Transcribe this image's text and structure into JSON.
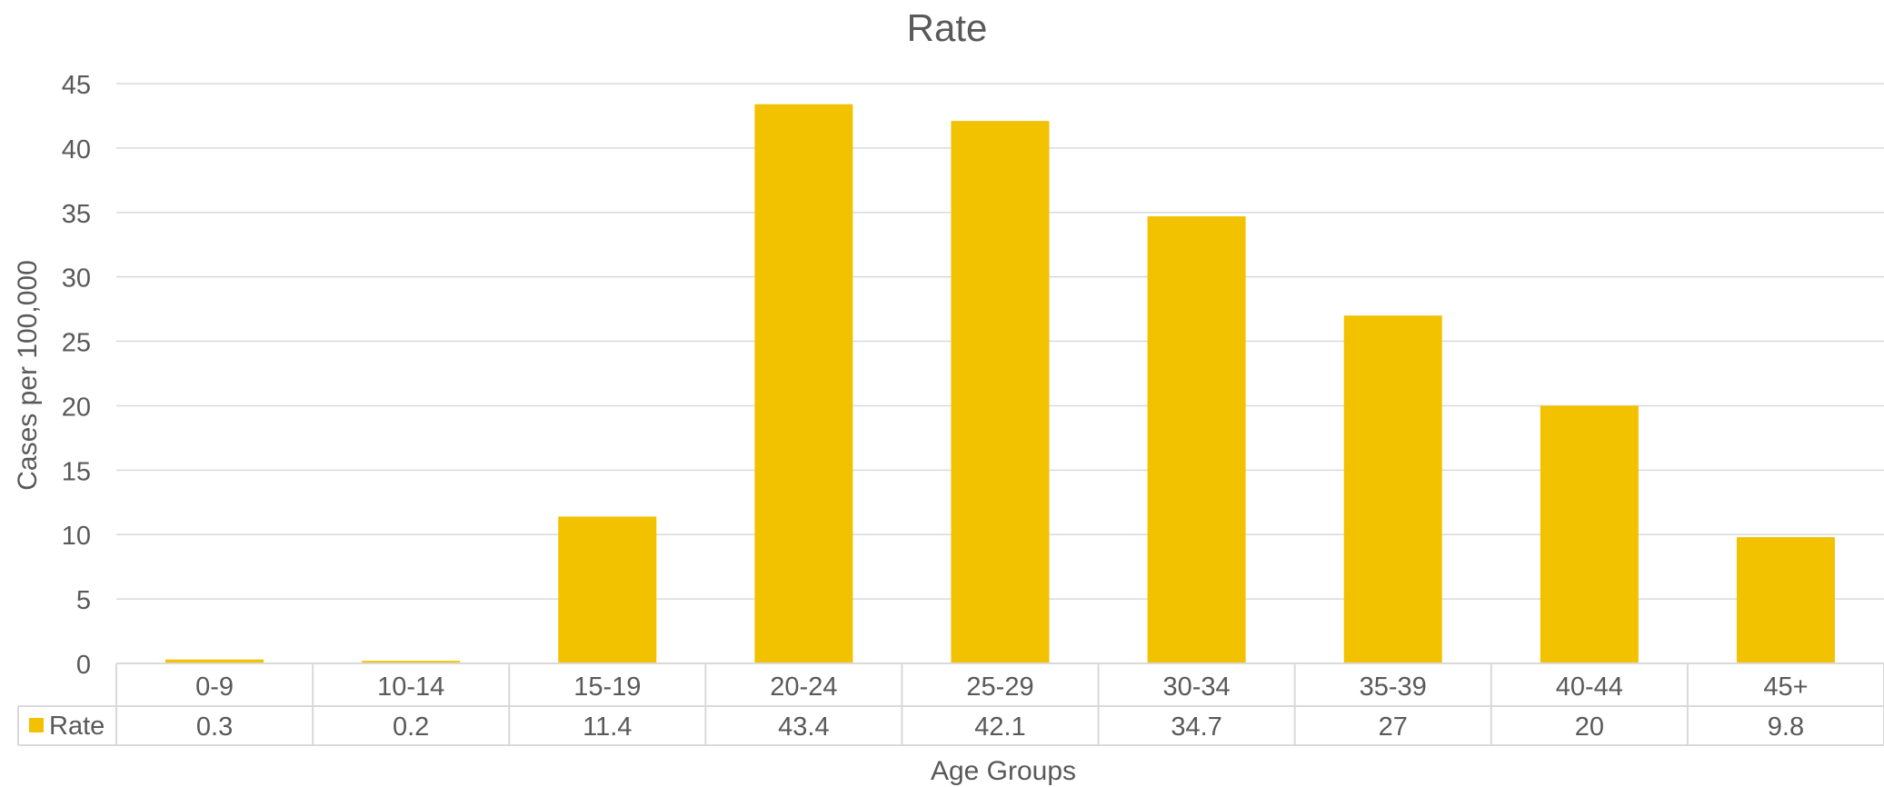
{
  "chart_data": {
    "type": "bar",
    "title": "Rate",
    "xlabel": "Age Groups",
    "ylabel": "Cases per 100,000",
    "categories": [
      "0-9",
      "10-14",
      "15-19",
      "20-24",
      "25-29",
      "30-34",
      "35-39",
      "40-44",
      "45+"
    ],
    "series": [
      {
        "name": "Rate",
        "values": [
          0.3,
          0.2,
          11.4,
          43.4,
          42.1,
          34.7,
          27,
          20,
          9.8
        ],
        "labels": [
          "0.3",
          "0.2",
          "11.4",
          "43.4",
          "42.1",
          "34.7",
          "27",
          "20",
          "9.8"
        ],
        "color": "#F2C200"
      }
    ],
    "ylim": [
      0,
      45
    ],
    "yticks": [
      "0",
      "5",
      "10",
      "15",
      "20",
      "25",
      "30",
      "35",
      "40",
      "45"
    ],
    "grid": true,
    "legend": "data-table",
    "data_table": true,
    "colors": {
      "text": "#595959",
      "grid": "#D9D9D9",
      "bar": "#F2C200"
    }
  }
}
